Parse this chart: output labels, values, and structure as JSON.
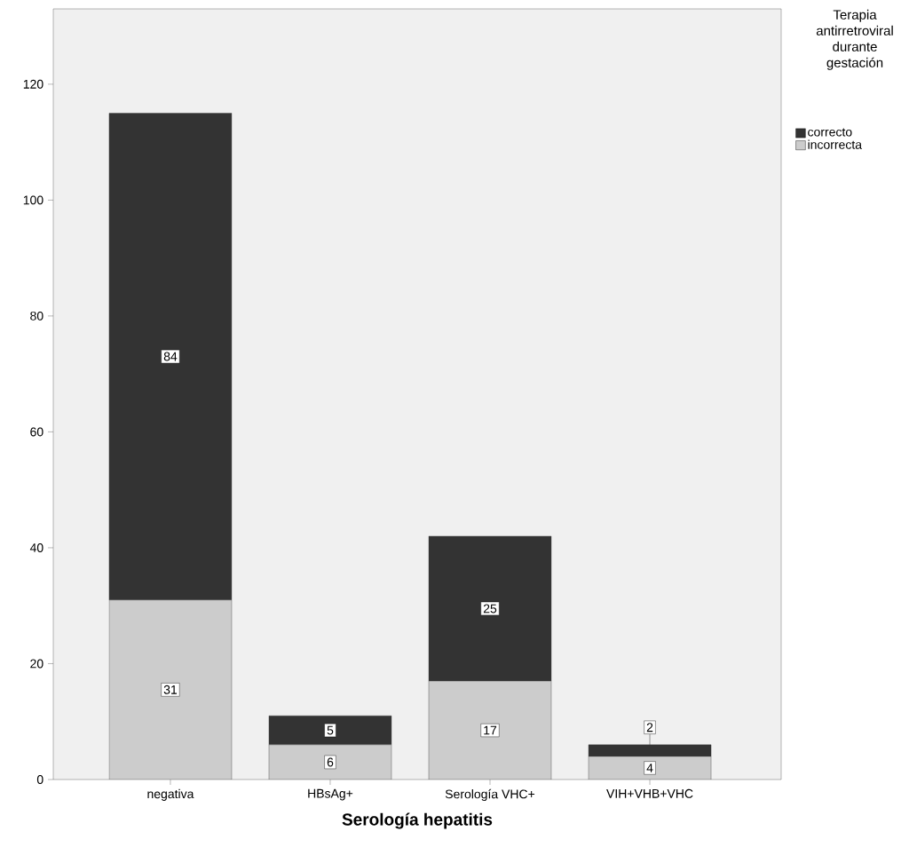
{
  "chart_data": {
    "type": "bar",
    "stacked": true,
    "xlabel": "Serología hepatitis",
    "legend_title": "Terapia antirretroviral durante gestación",
    "categories": [
      "negativa",
      "HBsAg+",
      "Serología VHC+",
      "VIH+VHB+VHC"
    ],
    "series": [
      {
        "name": "incorrecta",
        "color": "#cccccc",
        "values": [
          31,
          6,
          17,
          4
        ]
      },
      {
        "name": "correcto",
        "color": "#333333",
        "values": [
          84,
          5,
          25,
          2
        ]
      }
    ],
    "ylim": [
      0,
      133
    ],
    "yticks": [
      0,
      20,
      40,
      60,
      80,
      100,
      120
    ],
    "data_labels": true,
    "legend": "right"
  }
}
